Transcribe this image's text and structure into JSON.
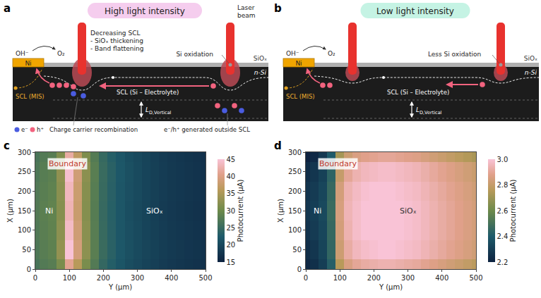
{
  "diagrams": [
    {
      "letter": "a",
      "title": "High light intensity",
      "color": "#f5cdee",
      "labels": {
        "laser": "Laser beam",
        "ni": "Ni",
        "oh": "OH⁻",
        "o2": "O₂",
        "siox": "SiOₓ",
        "nsi": "n-Si",
        "scl_top": [
          "Decreasing SCL",
          "- SiOₓ thickening",
          "- Band flattening"
        ],
        "oxidation": "Si oxidation",
        "scl_se": "SCL (Si – Electrolyte)",
        "scl_mis": "SCL (MIS)",
        "ld": {
          "main": "L",
          "sub": "D,Vertical"
        },
        "recomb": "Charge carrier recombination",
        "outside": "e⁻/h⁺ generated outside SCL",
        "legend": [
          "e⁻",
          "h⁺"
        ]
      }
    },
    {
      "letter": "b",
      "title": "Low light intensity",
      "color": "#c5f3e4",
      "labels": {
        "ni": "Ni",
        "oh": "OH⁻",
        "o2": "O₂",
        "siox": "SiOₓ",
        "nsi": "n-Si",
        "oxidation": "Less Si oxidation",
        "scl_se": "SCL (Si – Electrolyte)",
        "scl_mis": "SCL (MIS)",
        "ld": {
          "main": "L",
          "sub": "D,Vertical"
        }
      }
    }
  ],
  "chart_data": [
    {
      "type": "heatmap",
      "letter": "c",
      "xlabel": "X (μm)",
      "ylabel": "Y (μm)",
      "zlabel": "Photocurrent (μA)",
      "x": [
        0,
        50,
        100,
        150,
        200,
        250,
        300
      ],
      "y": [
        0,
        25,
        50,
        75,
        100,
        125,
        150,
        175,
        200,
        225,
        250,
        275,
        300,
        325,
        350,
        375,
        400,
        425,
        450,
        475,
        500
      ],
      "values": [
        [
          26.5,
          27.5,
          28,
          31,
          41,
          36,
          31,
          27.5,
          24.6,
          23.1,
          21.8,
          20.8,
          20.1,
          19.4,
          18.9,
          18.4,
          18,
          17.7,
          17.4,
          17.2,
          17
        ],
        [
          27,
          28,
          28.6,
          33,
          45,
          39,
          32.5,
          28.2,
          25.2,
          23.6,
          22.1,
          21.1,
          20.4,
          19.7,
          19.1,
          18.6,
          18.2,
          17.9,
          17.6,
          17.4,
          17.2
        ],
        [
          27.2,
          28.2,
          28.8,
          32.5,
          44,
          38.5,
          32.2,
          28,
          25,
          23.5,
          22,
          21,
          20.3,
          19.6,
          19,
          18.5,
          18.1,
          17.8,
          17.5,
          17.3,
          17.1
        ],
        [
          27.4,
          28.3,
          28.9,
          32,
          43,
          37.8,
          31.8,
          27.8,
          24.9,
          23.4,
          21.9,
          20.9,
          20.2,
          19.5,
          18.9,
          18.4,
          18,
          17.7,
          17.4,
          17.2,
          17
        ],
        [
          27.3,
          28.1,
          28.7,
          32.3,
          43.5,
          38,
          32,
          27.9,
          25,
          23.5,
          22,
          21,
          20.3,
          19.6,
          19,
          18.5,
          18.1,
          17.8,
          17.5,
          17.3,
          17.1
        ],
        [
          27,
          27.9,
          28.4,
          32.8,
          44.5,
          38.6,
          32.4,
          28.1,
          25.1,
          23.6,
          22.1,
          21.1,
          20.3,
          19.6,
          19,
          18.5,
          18.1,
          17.8,
          17.5,
          17.3,
          17.1
        ],
        [
          26.6,
          27.5,
          28,
          31.5,
          42,
          36.8,
          31.3,
          27.6,
          24.8,
          23.3,
          21.9,
          20.9,
          20.2,
          19.5,
          18.9,
          18.4,
          18,
          17.7,
          17.4,
          17.2,
          17
        ]
      ],
      "xlim": [
        0,
        300
      ],
      "xticks": [
        0,
        50,
        100,
        150,
        200,
        250,
        300
      ],
      "ylim": [
        0,
        500
      ],
      "yticks": [
        0,
        100,
        200,
        300,
        400,
        500
      ],
      "zlim": [
        15,
        45
      ],
      "zticks": [
        15,
        20,
        25,
        30,
        35,
        40,
        45
      ],
      "annotations": [
        {
          "text": "Boundary",
          "x": 270,
          "y": 95,
          "color": "#c0392b"
        },
        {
          "text": "Ni",
          "x": 150,
          "y": 40,
          "color": "#ffffff"
        },
        {
          "text": "SiOₓ",
          "x": 150,
          "y": 350,
          "color": "#ffffff"
        }
      ]
    },
    {
      "type": "heatmap",
      "letter": "d",
      "xlabel": "X (μm)",
      "ylabel": "Y (μm)",
      "zlabel": "Photocurrent (μA)",
      "x": [
        0,
        50,
        100,
        150,
        200,
        250,
        300
      ],
      "y": [
        0,
        25,
        50,
        75,
        100,
        125,
        150,
        175,
        200,
        225,
        250,
        275,
        300,
        325,
        350,
        375,
        400,
        425,
        450,
        475,
        500
      ],
      "values": [
        [
          2.22,
          2.25,
          2.3,
          2.42,
          2.76,
          2.86,
          2.9,
          2.92,
          2.93,
          2.94,
          2.94,
          2.93,
          2.92,
          2.91,
          2.89,
          2.87,
          2.85,
          2.83,
          2.81,
          2.79,
          2.77
        ],
        [
          2.24,
          2.27,
          2.32,
          2.45,
          2.82,
          2.92,
          2.96,
          2.98,
          2.99,
          3.0,
          3.0,
          2.99,
          2.98,
          2.97,
          2.95,
          2.93,
          2.91,
          2.89,
          2.87,
          2.85,
          2.83
        ],
        [
          2.26,
          2.29,
          2.33,
          2.46,
          2.84,
          2.94,
          2.98,
          3.0,
          3.0,
          3.0,
          3.0,
          3.0,
          2.99,
          2.98,
          2.96,
          2.94,
          2.92,
          2.9,
          2.88,
          2.86,
          2.84
        ],
        [
          2.27,
          2.3,
          2.34,
          2.47,
          2.85,
          2.95,
          2.98,
          3.0,
          3.0,
          3.0,
          3.0,
          3.0,
          2.99,
          2.98,
          2.96,
          2.94,
          2.92,
          2.9,
          2.88,
          2.86,
          2.84
        ],
        [
          2.26,
          2.29,
          2.33,
          2.46,
          2.84,
          2.94,
          2.97,
          2.99,
          3.0,
          3.0,
          3.0,
          2.99,
          2.98,
          2.97,
          2.95,
          2.93,
          2.91,
          2.89,
          2.87,
          2.85,
          2.83
        ],
        [
          2.24,
          2.27,
          2.31,
          2.44,
          2.8,
          2.9,
          2.94,
          2.96,
          2.97,
          2.98,
          2.98,
          2.97,
          2.96,
          2.95,
          2.93,
          2.91,
          2.89,
          2.87,
          2.85,
          2.83,
          2.81
        ],
        [
          2.2,
          2.23,
          2.28,
          2.4,
          2.72,
          2.82,
          2.86,
          2.88,
          2.89,
          2.9,
          2.9,
          2.89,
          2.88,
          2.87,
          2.85,
          2.83,
          2.81,
          2.79,
          2.77,
          2.75,
          2.73
        ]
      ],
      "xlim": [
        0,
        300
      ],
      "xticks": [
        0,
        50,
        100,
        150,
        200,
        250,
        300
      ],
      "ylim": [
        0,
        500
      ],
      "yticks": [
        0,
        100,
        200,
        300,
        400,
        500
      ],
      "zlim": [
        2.2,
        3
      ],
      "zticks": [
        2.2,
        2.4,
        2.6,
        2.8,
        {
          "value": 3,
          "label": "3.0"
        }
      ],
      "annotations": [
        {
          "text": "Boundary",
          "x": 270,
          "y": 95,
          "color": "#c0392b"
        },
        {
          "text": "Ni",
          "x": 150,
          "y": 35,
          "color": "#ffffff"
        },
        {
          "text": "SiOₓ",
          "x": 150,
          "y": 300,
          "color": "#333333"
        }
      ]
    }
  ]
}
